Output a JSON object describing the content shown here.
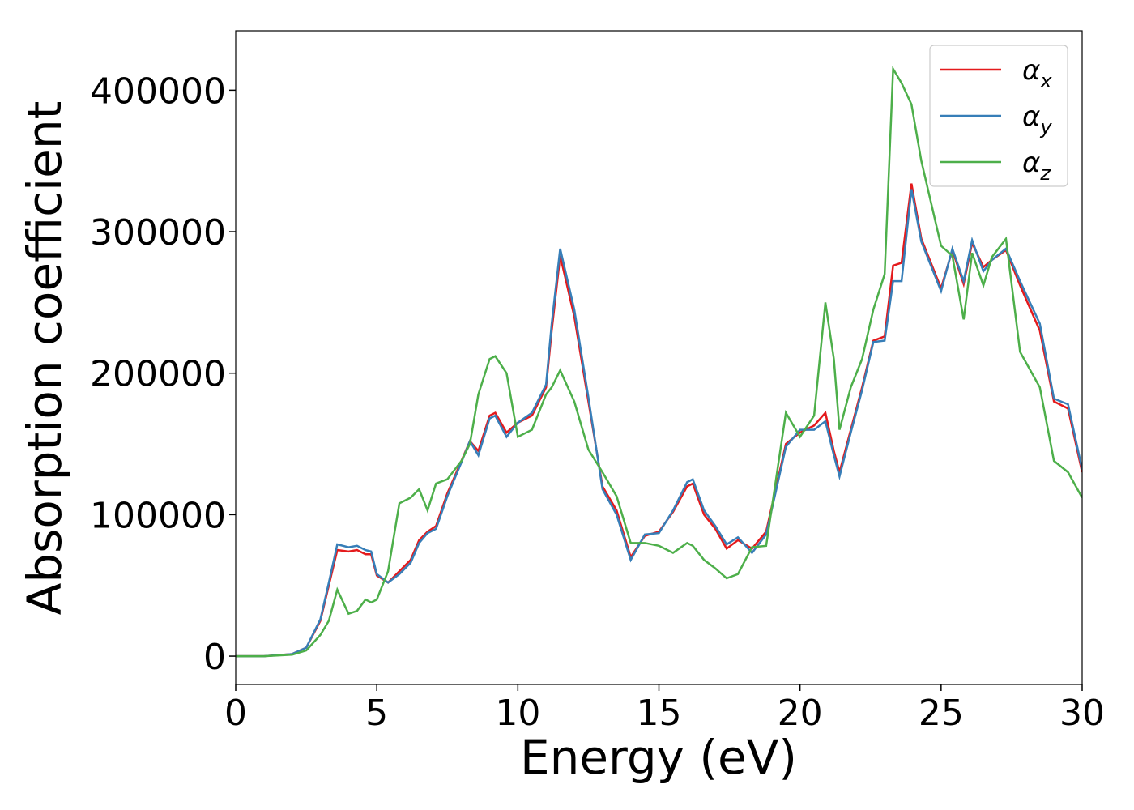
{
  "chart_data": {
    "type": "line",
    "xlabel": "Energy (eV)",
    "ylabel": "Absorption coefficient",
    "x": [
      0,
      1,
      2,
      2.5,
      3,
      3.3,
      3.6,
      4,
      4.3,
      4.6,
      4.8,
      5,
      5.4,
      5.8,
      6.2,
      6.5,
      6.8,
      7.1,
      7.5,
      8,
      8.3,
      8.6,
      9,
      9.2,
      9.6,
      10,
      10.5,
      11,
      11.2,
      11.5,
      12,
      12.5,
      13,
      13.5,
      14,
      14.5,
      15,
      15.5,
      16,
      16.2,
      16.6,
      17,
      17.4,
      17.8,
      18.3,
      18.8,
      19.5,
      20,
      20.5,
      20.9,
      21.2,
      21.4,
      21.8,
      22.2,
      22.6,
      23,
      23.3,
      23.6,
      23.95,
      24.3,
      25,
      25.4,
      25.8,
      26.1,
      26.5,
      26.8,
      27.3,
      27.8,
      28.5,
      29,
      29.5,
      30
    ],
    "series": [
      {
        "name": "αx",
        "color": "#e41a1c",
        "values": [
          0,
          0,
          1500,
          6000,
          25000,
          50000,
          75000,
          74000,
          75000,
          72000,
          72000,
          57000,
          52000,
          60000,
          68000,
          82000,
          88000,
          92000,
          115000,
          138000,
          152000,
          145000,
          170000,
          172000,
          158000,
          165000,
          170000,
          190000,
          230000,
          283000,
          240000,
          180000,
          120000,
          103000,
          70000,
          85000,
          88000,
          102000,
          120000,
          122000,
          100000,
          90000,
          76000,
          82000,
          76000,
          88000,
          150000,
          158000,
          163000,
          172000,
          145000,
          130000,
          160000,
          190000,
          223000,
          226000,
          276000,
          278000,
          334000,
          295000,
          260000,
          287000,
          263000,
          292000,
          275000,
          280000,
          287000,
          262000,
          230000,
          180000,
          175000,
          130000
        ]
      },
      {
        "name": "αy",
        "color": "#377eb8",
        "values": [
          0,
          0,
          1500,
          6000,
          26000,
          52000,
          79000,
          77000,
          78000,
          75000,
          74000,
          58000,
          52000,
          58000,
          66000,
          80000,
          87000,
          90000,
          113000,
          137000,
          152000,
          142000,
          168000,
          170000,
          155000,
          165000,
          172000,
          192000,
          235000,
          288000,
          245000,
          183000,
          118000,
          100000,
          68000,
          86000,
          87000,
          103000,
          123000,
          125000,
          103000,
          92000,
          79000,
          84000,
          73000,
          86000,
          148000,
          160000,
          160000,
          166000,
          142000,
          127000,
          158000,
          188000,
          222000,
          223000,
          265000,
          265000,
          330000,
          293000,
          258000,
          288000,
          265000,
          294000,
          272000,
          280000,
          288000,
          265000,
          235000,
          182000,
          178000,
          132000
        ]
      },
      {
        "name": "αz",
        "color": "#4daf4a",
        "values": [
          0,
          0,
          1000,
          4000,
          15000,
          25000,
          47000,
          30000,
          32000,
          40000,
          38000,
          40000,
          60000,
          108000,
          112000,
          118000,
          103000,
          122000,
          125000,
          138000,
          150000,
          185000,
          210000,
          212000,
          200000,
          155000,
          160000,
          185000,
          190000,
          202000,
          180000,
          146000,
          130000,
          113000,
          80000,
          80000,
          78000,
          73000,
          80000,
          78000,
          68000,
          62000,
          55000,
          58000,
          77000,
          78000,
          172000,
          155000,
          170000,
          250000,
          210000,
          160000,
          190000,
          210000,
          245000,
          270000,
          415000,
          405000,
          390000,
          350000,
          290000,
          283000,
          238000,
          285000,
          262000,
          282000,
          295000,
          215000,
          190000,
          138000,
          130000,
          112000
        ]
      }
    ],
    "xlim": [
      0,
      30
    ],
    "xticks": [
      0,
      5,
      10,
      15,
      20,
      25,
      30
    ],
    "ylim": [
      -20000,
      442000
    ],
    "yticks": [
      0,
      100000,
      200000,
      300000,
      400000
    ],
    "legend": "upper right"
  }
}
